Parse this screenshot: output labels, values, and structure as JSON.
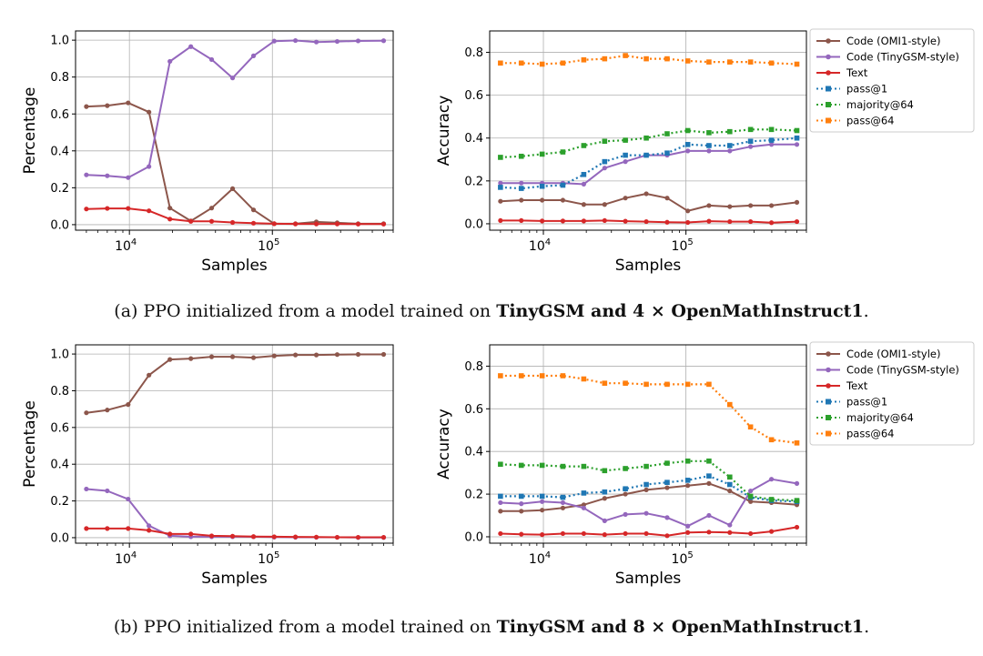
{
  "captions": [
    {
      "prefix": "(a) PPO initialized from a model trained on ",
      "bold": "TinyGSM and 4 × OpenMathInstruct1",
      "suffix": "."
    },
    {
      "prefix": "(b) PPO initialized from a model trained on ",
      "bold": "TinyGSM and 8 × OpenMathInstruct1",
      "suffix": "."
    }
  ],
  "colors": {
    "code_omi1": "#8c564b",
    "code_tinygsm": "#9467bd",
    "text": "#d62728",
    "pass1": "#1f77b4",
    "majority64": "#2ca02c",
    "pass64": "#ff7f0e"
  },
  "chart_data": [
    {
      "id": "a-percentage",
      "type": "line",
      "xscale": "log",
      "xlabel": "Samples",
      "ylabel": "Percentage",
      "xlim": [
        4200,
        700000
      ],
      "ylim": [
        -0.03,
        1.05
      ],
      "yticks": [
        "0.0",
        "0.2",
        "0.4",
        "0.6",
        "0.8",
        "1.0"
      ],
      "xticks": [
        "10^4",
        "10^5"
      ],
      "grid": true,
      "x": [
        5000,
        7000,
        9800,
        13700,
        19200,
        26900,
        37600,
        52700,
        73800,
        103000,
        145000,
        203000,
        284000,
        398000,
        600000
      ],
      "series": [
        {
          "name": "Code (OMI1-style)",
          "color_key": "code_omi1",
          "style": "solid",
          "marker": "dot",
          "values": [
            0.64,
            0.645,
            0.66,
            0.61,
            0.09,
            0.02,
            0.09,
            0.195,
            0.08,
            0.005,
            0.005,
            0.015,
            0.01,
            0.005,
            0.005
          ]
        },
        {
          "name": "Code (TinyGSM-style)",
          "color_key": "code_tinygsm",
          "style": "solid",
          "marker": "dot",
          "values": [
            0.27,
            0.265,
            0.255,
            0.315,
            0.885,
            0.965,
            0.895,
            0.795,
            0.915,
            0.995,
            0.998,
            0.99,
            0.993,
            0.996,
            0.997
          ]
        },
        {
          "name": "Text",
          "color_key": "text",
          "style": "solid",
          "marker": "dot",
          "values": [
            0.085,
            0.088,
            0.088,
            0.075,
            0.03,
            0.018,
            0.018,
            0.012,
            0.008,
            0.005,
            0.004,
            0.004,
            0.004,
            0.003,
            0.003
          ]
        }
      ]
    },
    {
      "id": "a-accuracy",
      "type": "line",
      "xscale": "log",
      "xlabel": "Samples",
      "ylabel": "Accuracy",
      "xlim": [
        4200,
        700000
      ],
      "ylim": [
        -0.03,
        0.9
      ],
      "yticks": [
        "0.0",
        "0.2",
        "0.4",
        "0.6",
        "0.8"
      ],
      "xticks": [
        "10^4",
        "10^5"
      ],
      "grid": true,
      "legend": "outside-right",
      "x": [
        5000,
        7000,
        9800,
        13700,
        19200,
        26900,
        37600,
        52700,
        73800,
        103000,
        145000,
        203000,
        284000,
        398000,
        600000
      ],
      "series": [
        {
          "name": "Code (OMI1-style)",
          "color_key": "code_omi1",
          "style": "solid",
          "marker": "dot",
          "values": [
            0.105,
            0.11,
            0.11,
            0.11,
            0.09,
            0.09,
            0.12,
            0.14,
            0.12,
            0.06,
            0.085,
            0.08,
            0.085,
            0.085,
            0.1
          ]
        },
        {
          "name": "Code (TinyGSM-style)",
          "color_key": "code_tinygsm",
          "style": "solid",
          "marker": "dot",
          "values": [
            0.19,
            0.19,
            0.19,
            0.19,
            0.185,
            0.26,
            0.29,
            0.32,
            0.32,
            0.34,
            0.34,
            0.34,
            0.36,
            0.37,
            0.37
          ]
        },
        {
          "name": "Text",
          "color_key": "text",
          "style": "solid",
          "marker": "dot",
          "values": [
            0.015,
            0.015,
            0.013,
            0.013,
            0.013,
            0.015,
            0.012,
            0.01,
            0.007,
            0.006,
            0.012,
            0.01,
            0.01,
            0.005,
            0.01
          ]
        },
        {
          "name": "pass@1",
          "color_key": "pass1",
          "style": "dotted",
          "marker": "square",
          "values": [
            0.17,
            0.165,
            0.175,
            0.18,
            0.23,
            0.29,
            0.32,
            0.32,
            0.33,
            0.37,
            0.365,
            0.365,
            0.385,
            0.39,
            0.4
          ]
        },
        {
          "name": "majority@64",
          "color_key": "majority64",
          "style": "dotted",
          "marker": "square",
          "values": [
            0.31,
            0.315,
            0.325,
            0.335,
            0.365,
            0.385,
            0.39,
            0.4,
            0.42,
            0.435,
            0.425,
            0.43,
            0.44,
            0.44,
            0.435
          ]
        },
        {
          "name": "pass@64",
          "color_key": "pass64",
          "style": "dotted",
          "marker": "square",
          "values": [
            0.75,
            0.75,
            0.745,
            0.75,
            0.765,
            0.77,
            0.785,
            0.77,
            0.77,
            0.76,
            0.755,
            0.755,
            0.755,
            0.75,
            0.745
          ]
        }
      ]
    },
    {
      "id": "b-percentage",
      "type": "line",
      "xscale": "log",
      "xlabel": "Samples",
      "ylabel": "Percentage",
      "xlim": [
        4200,
        700000
      ],
      "ylim": [
        -0.03,
        1.05
      ],
      "yticks": [
        "0.0",
        "0.2",
        "0.4",
        "0.6",
        "0.8",
        "1.0"
      ],
      "xticks": [
        "10^4",
        "10^5"
      ],
      "grid": true,
      "x": [
        5000,
        7000,
        9800,
        13700,
        19200,
        26900,
        37600,
        52700,
        73800,
        103000,
        145000,
        203000,
        284000,
        398000,
        600000
      ],
      "series": [
        {
          "name": "Code (OMI1-style)",
          "color_key": "code_omi1",
          "style": "solid",
          "marker": "dot",
          "values": [
            0.68,
            0.695,
            0.725,
            0.885,
            0.97,
            0.975,
            0.985,
            0.985,
            0.98,
            0.99,
            0.995,
            0.995,
            0.997,
            0.998,
            0.998
          ]
        },
        {
          "name": "Code (TinyGSM-style)",
          "color_key": "code_tinygsm",
          "style": "solid",
          "marker": "dot",
          "values": [
            0.265,
            0.255,
            0.21,
            0.065,
            0.01,
            0.005,
            0.005,
            0.005,
            0.005,
            0.003,
            0.002,
            0.002,
            0.002,
            0.001,
            0.001
          ]
        },
        {
          "name": "Text",
          "color_key": "text",
          "style": "solid",
          "marker": "dot",
          "values": [
            0.05,
            0.05,
            0.05,
            0.04,
            0.02,
            0.02,
            0.01,
            0.008,
            0.006,
            0.005,
            0.004,
            0.003,
            0.002,
            0.002,
            0.002
          ]
        }
      ]
    },
    {
      "id": "b-accuracy",
      "type": "line",
      "xscale": "log",
      "xlabel": "Samples",
      "ylabel": "Accuracy",
      "xlim": [
        4200,
        700000
      ],
      "ylim": [
        -0.03,
        0.9
      ],
      "yticks": [
        "0.0",
        "0.2",
        "0.4",
        "0.6",
        "0.8"
      ],
      "xticks": [
        "10^4",
        "10^5"
      ],
      "grid": true,
      "legend": "outside-right",
      "x": [
        5000,
        7000,
        9800,
        13700,
        19200,
        26900,
        37600,
        52700,
        73800,
        103000,
        145000,
        203000,
        284000,
        398000,
        600000
      ],
      "series": [
        {
          "name": "Code (OMI1-style)",
          "color_key": "code_omi1",
          "style": "solid",
          "marker": "dot",
          "values": [
            0.12,
            0.12,
            0.125,
            0.135,
            0.15,
            0.18,
            0.2,
            0.22,
            0.23,
            0.24,
            0.25,
            0.215,
            0.165,
            0.16,
            0.15
          ]
        },
        {
          "name": "Code (TinyGSM-style)",
          "color_key": "code_tinygsm",
          "style": "solid",
          "marker": "dot",
          "values": [
            0.16,
            0.155,
            0.165,
            0.16,
            0.135,
            0.075,
            0.105,
            0.11,
            0.09,
            0.05,
            0.1,
            0.055,
            0.215,
            0.27,
            0.25
          ]
        },
        {
          "name": "Text",
          "color_key": "text",
          "style": "solid",
          "marker": "dot",
          "values": [
            0.015,
            0.012,
            0.01,
            0.015,
            0.015,
            0.01,
            0.015,
            0.015,
            0.005,
            0.02,
            0.022,
            0.02,
            0.015,
            0.025,
            0.045
          ]
        },
        {
          "name": "pass@1",
          "color_key": "pass1",
          "style": "dotted",
          "marker": "square",
          "values": [
            0.19,
            0.19,
            0.19,
            0.185,
            0.205,
            0.21,
            0.225,
            0.245,
            0.255,
            0.265,
            0.285,
            0.245,
            0.185,
            0.17,
            0.165
          ]
        },
        {
          "name": "majority@64",
          "color_key": "majority64",
          "style": "dotted",
          "marker": "square",
          "values": [
            0.34,
            0.335,
            0.335,
            0.33,
            0.33,
            0.31,
            0.32,
            0.33,
            0.345,
            0.355,
            0.355,
            0.28,
            0.19,
            0.175,
            0.17
          ]
        },
        {
          "name": "pass@64",
          "color_key": "pass64",
          "style": "dotted",
          "marker": "square",
          "values": [
            0.755,
            0.755,
            0.755,
            0.755,
            0.74,
            0.72,
            0.72,
            0.715,
            0.715,
            0.715,
            0.715,
            0.62,
            0.515,
            0.455,
            0.44
          ]
        }
      ]
    }
  ]
}
